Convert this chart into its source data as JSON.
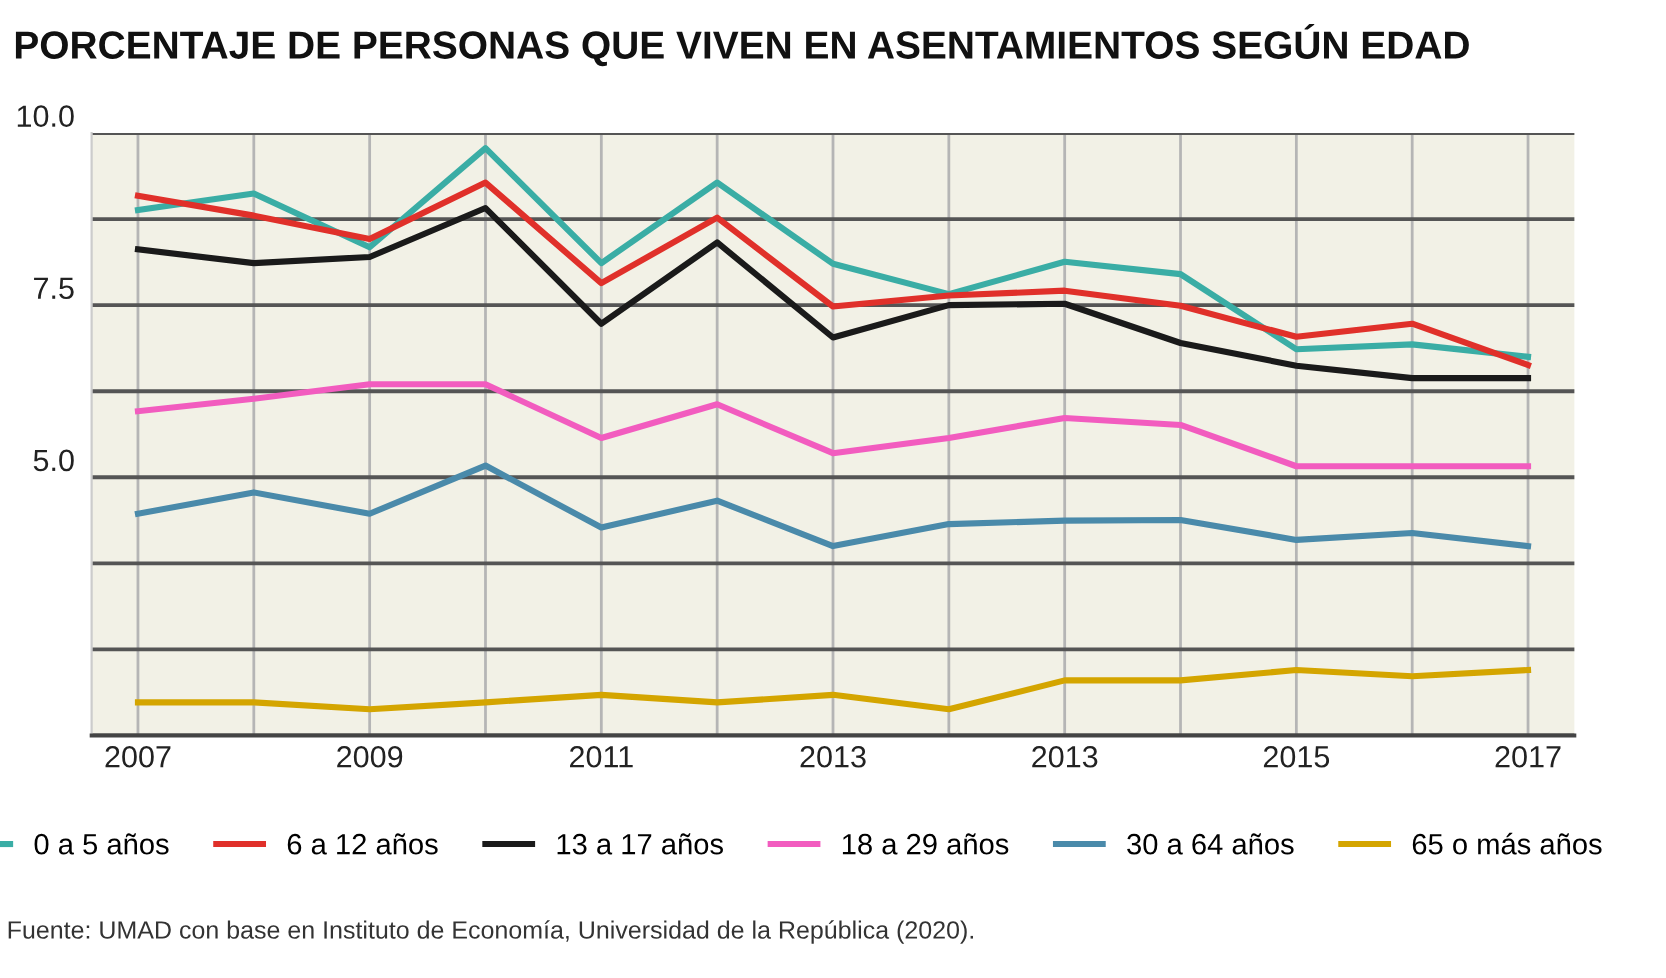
{
  "chart_data": {
    "type": "line",
    "title": "PORCENTAJE DE PERSONAS QUE VIVEN EN ASENTAMIENTOS SEGÚN EDAD",
    "categories": [
      "2007",
      null,
      "2009",
      null,
      "2011",
      null,
      "2013",
      null,
      "2013",
      null,
      "2015",
      null,
      "2017"
    ],
    "series": [
      {
        "name": "0 a 5 años",
        "color": "#3aada5",
        "values": [
          8.88,
          9.12,
          8.34,
          9.78,
          8.11,
          9.28,
          8.1,
          7.66,
          8.13,
          7.95,
          6.86,
          6.93,
          6.75
        ]
      },
      {
        "name": "6 a 12 años",
        "color": "#e0302a",
        "values": [
          9.09,
          8.8,
          8.46,
          9.28,
          7.82,
          8.77,
          7.48,
          7.64,
          7.71,
          7.49,
          7.04,
          7.23,
          6.63
        ]
      },
      {
        "name": "13 a 17 años",
        "color": "#1a1a1a",
        "values": [
          8.31,
          8.11,
          8.2,
          8.91,
          7.23,
          8.41,
          7.03,
          7.5,
          7.52,
          6.95,
          6.62,
          6.44,
          6.44
        ]
      },
      {
        "name": "18 a 29 años",
        "color": "#f25cbf",
        "values": [
          5.96,
          6.14,
          6.35,
          6.35,
          5.57,
          6.06,
          5.35,
          5.57,
          5.86,
          5.76,
          5.16,
          5.16,
          5.16
        ]
      },
      {
        "name": "30 a 64 años",
        "color": "#4a8aaa",
        "values": [
          4.47,
          4.78,
          4.47,
          5.17,
          4.27,
          4.66,
          4.0,
          4.32,
          4.37,
          4.38,
          4.09,
          4.19,
          4.0
        ]
      },
      {
        "name": "65 o más años",
        "color": "#d4a500",
        "values": [
          1.73,
          1.73,
          1.63,
          1.73,
          1.84,
          1.73,
          1.84,
          1.63,
          2.05,
          2.05,
          2.2,
          2.11,
          2.2
        ]
      }
    ],
    "ylim": [
      1.25,
      10
    ],
    "yticks": [
      {
        "value": 1.25,
        "label": null
      },
      {
        "value": 2.5,
        "label": null
      },
      {
        "value": 3.75,
        "label": null
      },
      {
        "value": 5,
        "label": "5.0"
      },
      {
        "value": 6.25,
        "label": null
      },
      {
        "value": 7.5,
        "label": "7.5"
      },
      {
        "value": 8.75,
        "label": null
      },
      {
        "value": 10,
        "label": "10.0"
      }
    ],
    "grid": true,
    "legend": "bottom",
    "marker": "none",
    "line_style": "solid",
    "annotations": [
      "Fuente: UMAD con base en Instituto de Economía, Universidad de la República (2020)."
    ]
  }
}
